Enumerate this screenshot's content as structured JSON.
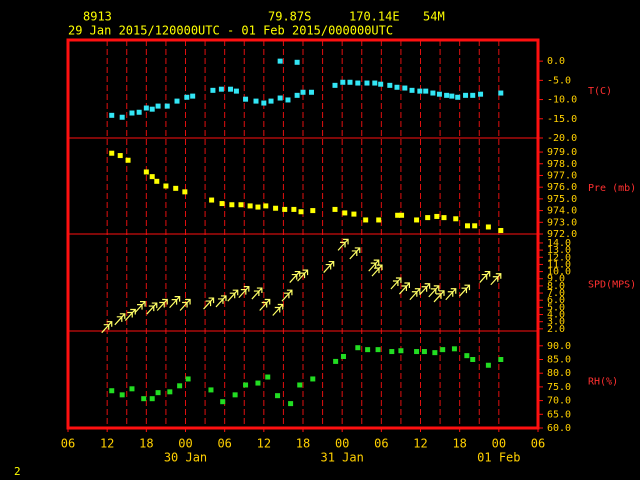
{
  "header": {
    "station": "8913",
    "lat": "79.87S",
    "lon": "170.14E",
    "elev": "54M",
    "period": "29 Jan 2015/120000UTC - 01 Feb 2015/000000UTC",
    "page": "2"
  },
  "x_axis": {
    "xlim": [
      6,
      78
    ],
    "xticks": [
      {
        "value": 6,
        "label": "06"
      },
      {
        "value": 12,
        "label": "12"
      },
      {
        "value": 18,
        "label": "18"
      },
      {
        "value": 24,
        "label": "00"
      },
      {
        "value": 30,
        "label": "06"
      },
      {
        "value": 36,
        "label": "12"
      },
      {
        "value": 42,
        "label": "18"
      },
      {
        "value": 48,
        "label": "00"
      },
      {
        "value": 54,
        "label": "06"
      },
      {
        "value": 60,
        "label": "12"
      },
      {
        "value": 66,
        "label": "18"
      },
      {
        "value": 72,
        "label": "00"
      },
      {
        "value": 78,
        "label": "06"
      }
    ],
    "date_labels": [
      {
        "value": 24,
        "label": "30 Jan"
      },
      {
        "value": 48,
        "label": "31 Jan"
      },
      {
        "value": 72,
        "label": "01 Feb"
      }
    ],
    "xgrid": [
      12,
      15,
      18,
      21,
      24,
      27,
      30,
      33,
      36,
      39,
      42,
      45,
      48,
      51,
      54,
      57,
      60,
      63,
      66,
      69,
      72
    ]
  },
  "chart_data": [
    {
      "type": "scatter",
      "name": "T(C)",
      "marker": "square",
      "color": "#33e6f5",
      "ylim": [
        -20,
        5.5
      ],
      "yticks": [
        {
          "value": 0,
          "label": "0.0"
        },
        {
          "value": -5,
          "label": "-5.0"
        },
        {
          "value": -10,
          "label": "-10.0"
        },
        {
          "value": -15,
          "label": "-15.0"
        },
        {
          "value": -20,
          "label": "-20.0"
        }
      ],
      "x": [
        12.7,
        14.3,
        15.8,
        16.9,
        18.0,
        18.9,
        19.8,
        21.2,
        22.7,
        24.2,
        25.1,
        28.2,
        29.5,
        30.9,
        31.8,
        33.2,
        34.8,
        36.0,
        37.1,
        38.5,
        39.7,
        41.1,
        42.0,
        43.3,
        38.5,
        41.1,
        46.9,
        48.1,
        49.2,
        50.4,
        51.8,
        53.0,
        53.9,
        55.3,
        56.4,
        57.6,
        58.7,
        59.9,
        60.8,
        61.9,
        62.9,
        64.0,
        64.8,
        65.7,
        66.9,
        68.0,
        69.2,
        72.3
      ],
      "values": [
        -14.1,
        -14.6,
        -13.5,
        -13.3,
        -12.2,
        -12.5,
        -11.7,
        -11.7,
        -10.4,
        -9.4,
        -9.1,
        -7.6,
        -7.3,
        -7.3,
        -7.8,
        -9.9,
        -10.4,
        -10.9,
        -10.4,
        -9.6,
        -10.1,
        -8.9,
        -8.1,
        -8.1,
        0,
        -0.3,
        -6.3,
        -5.5,
        -5.5,
        -5.7,
        -5.7,
        -5.7,
        -6.0,
        -6.3,
        -6.8,
        -7.0,
        -7.6,
        -7.8,
        -7.8,
        -8.3,
        -8.6,
        -8.9,
        -9.1,
        -9.4,
        -8.9,
        -8.9,
        -8.6,
        -8.3
      ]
    },
    {
      "type": "scatter",
      "name": "Pre (mb)",
      "marker": "square",
      "color": "#ffff00",
      "ylim": [
        972,
        980.2
      ],
      "yticks": [
        {
          "value": 979,
          "label": "979.0"
        },
        {
          "value": 978,
          "label": "978.0"
        },
        {
          "value": 977,
          "label": "977.0"
        },
        {
          "value": 976,
          "label": "976.0"
        },
        {
          "value": 975,
          "label": "975.0"
        },
        {
          "value": 974,
          "label": "974.0"
        },
        {
          "value": 973,
          "label": "973.0"
        },
        {
          "value": 972,
          "label": "972.0"
        }
      ],
      "x": [
        12.7,
        14.0,
        15.2,
        18.0,
        18.9,
        19.6,
        21.0,
        22.5,
        23.9,
        28.0,
        29.6,
        31.1,
        32.5,
        33.9,
        35.1,
        36.3,
        37.8,
        39.2,
        40.6,
        41.7,
        43.5,
        46.9,
        48.4,
        49.8,
        51.6,
        53.6,
        56.5,
        57.1,
        59.4,
        61.1,
        62.5,
        63.6,
        65.4,
        67.2,
        68.3,
        70.4,
        72.3
      ],
      "values": [
        978.9,
        978.7,
        978.3,
        977.3,
        976.9,
        976.5,
        976.1,
        975.9,
        975.6,
        974.9,
        974.6,
        974.5,
        974.5,
        974.4,
        974.3,
        974.4,
        974.2,
        974.1,
        974.1,
        973.9,
        974.0,
        974.1,
        973.8,
        973.7,
        973.2,
        973.2,
        973.6,
        973.6,
        973.2,
        973.4,
        973.5,
        973.4,
        973.3,
        972.7,
        972.7,
        972.6,
        972.3
      ]
    },
    {
      "type": "scatter",
      "name": "SPD(MPS)",
      "marker": "arrow",
      "color": "#ffff66",
      "ylim": [
        1.7,
        15.25
      ],
      "yticks": [
        {
          "value": 14,
          "label": "14.0"
        },
        {
          "value": 13,
          "label": "13.0"
        },
        {
          "value": 12,
          "label": "12.0"
        },
        {
          "value": 11,
          "label": "11.0"
        },
        {
          "value": 10,
          "label": "10.0"
        },
        {
          "value": 9,
          "label": "9.0"
        },
        {
          "value": 8,
          "label": "8.0"
        },
        {
          "value": 7,
          "label": "7.0"
        },
        {
          "value": 6,
          "label": "6.0"
        },
        {
          "value": 5,
          "label": "5.0"
        },
        {
          "value": 4,
          "label": "4.0"
        },
        {
          "value": 3,
          "label": "3.0"
        },
        {
          "value": 2,
          "label": "2.0"
        }
      ],
      "x": [
        12.7,
        14.7,
        16.3,
        17.8,
        19.6,
        21.2,
        23.1,
        24.7,
        28.3,
        30.2,
        32.0,
        33.7,
        35.7,
        36.9,
        38.9,
        40.3,
        41.5,
        42.7,
        46.7,
        48.9,
        50.7,
        53.6,
        54.1,
        57.0,
        58.3,
        59.9,
        61.4,
        62.8,
        63.6,
        65.4,
        67.5,
        70.6,
        72.3
      ],
      "values": [
        3.0,
        4.1,
        4.7,
        5.8,
        5.6,
        6.1,
        6.5,
        6.1,
        6.3,
        6.6,
        7.4,
        7.9,
        7.7,
        6.1,
        5.4,
        7.4,
        10.0,
        10.2,
        11.4,
        14.5,
        13.3,
        11.6,
        10.9,
        9.1,
        8.4,
        7.6,
        8.3,
        8.0,
        7.3,
        7.6,
        8.1,
        10.0,
        9.7
      ]
    },
    {
      "type": "scatter",
      "name": "RH(%)",
      "marker": "square",
      "color": "#22dd22",
      "ylim": [
        60,
        95.4
      ],
      "yticks": [
        {
          "value": 90,
          "label": "90.0"
        },
        {
          "value": 85,
          "label": "85.0"
        },
        {
          "value": 80,
          "label": "80.0"
        },
        {
          "value": 75,
          "label": "75.0"
        },
        {
          "value": 70,
          "label": "70.0"
        },
        {
          "value": 65,
          "label": "65.0"
        },
        {
          "value": 60,
          "label": "60.0"
        }
      ],
      "x": [
        12.7,
        14.3,
        15.8,
        17.6,
        18.9,
        19.8,
        21.6,
        23.1,
        24.4,
        27.9,
        29.7,
        31.6,
        33.2,
        35.1,
        36.6,
        38.1,
        40.1,
        41.5,
        43.5,
        47.0,
        48.2,
        50.4,
        51.9,
        53.5,
        55.6,
        57.0,
        59.4,
        60.6,
        62.2,
        63.4,
        65.2,
        67.1,
        68.0,
        70.4,
        72.3
      ],
      "values": [
        73.6,
        72.1,
        74.3,
        70.7,
        70.7,
        72.9,
        73.2,
        75.4,
        77.9,
        73.9,
        69.6,
        72.1,
        75.7,
        76.4,
        78.6,
        71.8,
        68.9,
        75.7,
        77.9,
        84.3,
        86.1,
        89.3,
        88.6,
        88.6,
        87.9,
        88.2,
        87.9,
        87.9,
        87.5,
        88.6,
        88.9,
        86.4,
        85.0,
        82.9,
        85.0
      ]
    }
  ]
}
